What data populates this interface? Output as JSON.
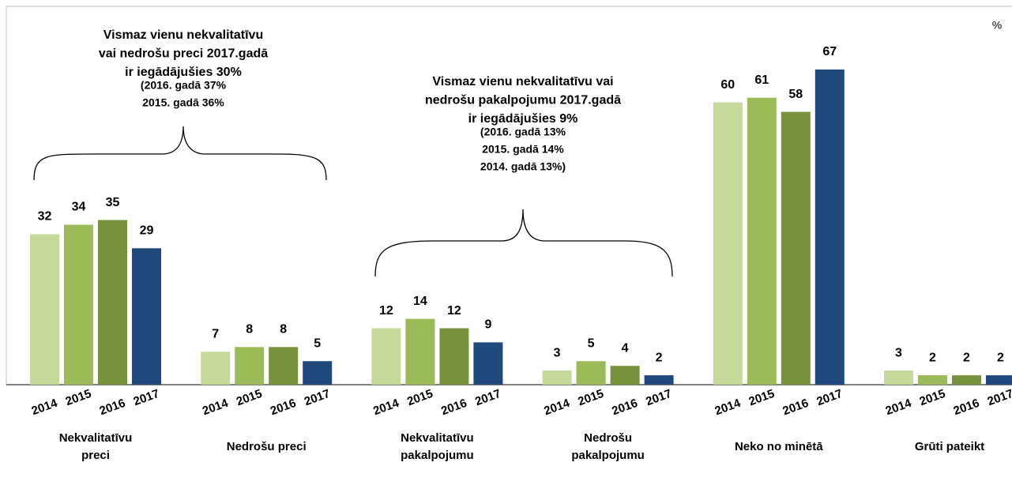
{
  "chart_data": {
    "type": "bar",
    "unit_label": "%",
    "categories": [
      [
        "Nekvalitatīvu",
        "preci"
      ],
      [
        "Nedrošu preci"
      ],
      [
        "Nekvalitatīvu",
        "pakalpojumu"
      ],
      [
        "Nedrošu",
        "pakalpojumu"
      ],
      [
        "Neko no minētā"
      ],
      [
        "Grūti pateikt"
      ]
    ],
    "series": [
      {
        "name": "2014",
        "color": "#c5d99b",
        "values": [
          32,
          7,
          12,
          3,
          60,
          3
        ]
      },
      {
        "name": "2015",
        "color": "#9bbb59",
        "values": [
          34,
          8,
          14,
          5,
          61,
          2
        ]
      },
      {
        "name": "2016",
        "color": "#76923c",
        "values": [
          35,
          8,
          12,
          4,
          58,
          2
        ]
      },
      {
        "name": "2017",
        "color": "#1f497d",
        "values": [
          29,
          5,
          9,
          2,
          67,
          2
        ]
      }
    ],
    "annotations": [
      {
        "lines": [
          "Vismaz vienu nekvalitatīvu",
          "vai nedrošu preci 2017.gadā",
          "ir iegādājušies 30%",
          "(2016. gadā 37%",
          "2015. gadā 36%"
        ]
      },
      {
        "lines": [
          "Vismaz vienu nekvalitatīvu vai",
          "nedrošu pakalpojumu 2017.gadā",
          "ir iegādājušies 9%",
          "(2016. gadā 13%",
          "2015. gadā 14%",
          "2014. gadā 13%)"
        ]
      }
    ]
  }
}
